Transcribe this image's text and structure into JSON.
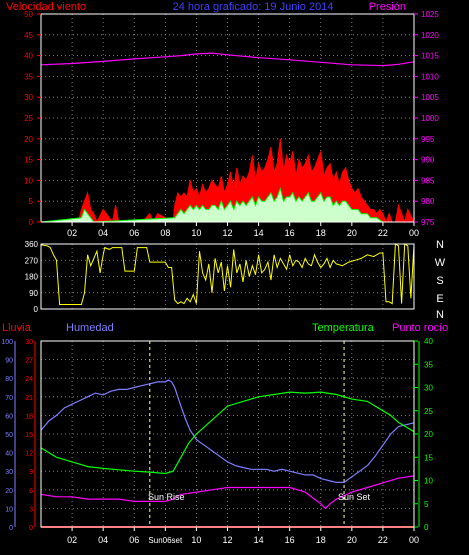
{
  "header": {
    "title": "24 hora graficado: 19 Junio 2014",
    "left_label": "Velocidad viento",
    "right_label": "Presión"
  },
  "colors": {
    "background": "#000000",
    "grid": "#9a9a9a",
    "red": "#ff0000",
    "blue": "#3f3fff",
    "magenta": "#ff00ff",
    "green": "#00ff00",
    "yellow": "#ffff00",
    "light_blue": "#7f7fff",
    "white": "#ffffff",
    "dim_white": "#c8ffc8",
    "fill_gust": "#ff0000",
    "fill_avg": "#ccffcc"
  },
  "direction_labels": [
    "N",
    "W",
    "S",
    "E",
    "N"
  ],
  "bottom_labels": {
    "lluvia": "Lluvia",
    "humedad": "Humedad",
    "temperatura": "Temperatura",
    "punto_rocio": "Punto rocío"
  },
  "annotations": {
    "sun_rise": "Sun Rise",
    "sun_set": "Sun Set",
    "sun_time_label": "Sun06set"
  },
  "x_ticks": [
    "02",
    "04",
    "06",
    "08",
    "10",
    "12",
    "14",
    "16",
    "18",
    "20",
    "22",
    "00"
  ],
  "chart_data": [
    {
      "type": "area",
      "panel": "wind",
      "title": "24 hora graficado: 19 Junio 2014",
      "x_range_hours": [
        0,
        24
      ],
      "y_left_label": "Velocidad viento",
      "y_left_ticks": [
        0,
        5,
        10,
        15,
        20,
        25,
        30,
        35,
        40,
        45,
        50
      ],
      "y_left_range": [
        0,
        50
      ],
      "y_right_label": "Presión",
      "y_right_ticks": [
        975,
        980,
        985,
        990,
        995,
        1000,
        1005,
        1010,
        1015,
        1020,
        1025
      ],
      "y_right_range": [
        975,
        1025
      ],
      "series": [
        {
          "name": "Presión",
          "axis": "right",
          "color": "#ff00ff",
          "x": [
            0,
            2,
            4,
            6,
            8,
            9,
            10,
            11,
            12,
            14,
            16,
            18,
            20,
            22,
            23,
            24
          ],
          "y": [
            1012.8,
            1013.1,
            1013.6,
            1014.2,
            1014.7,
            1015.0,
            1015.4,
            1015.6,
            1015.2,
            1014.5,
            1014.0,
            1013.4,
            1012.8,
            1012.6,
            1012.9,
            1013.5
          ]
        },
        {
          "name": "gust",
          "x": [
            0,
            2.4,
            2.6,
            2.8,
            3.0,
            3.2,
            3.4,
            3.6,
            4.0,
            4.6,
            4.8,
            5.0,
            6.5,
            7.0,
            7.2,
            7.5,
            8.5,
            8.6,
            8.8,
            9.0,
            9.2,
            9.4,
            9.6,
            9.8,
            10.0,
            10.2,
            10.4,
            10.6,
            10.8,
            11.0,
            11.2,
            11.4,
            11.6,
            11.8,
            12.0,
            12.2,
            12.4,
            12.6,
            12.8,
            13.0,
            13.2,
            13.4,
            13.6,
            13.8,
            14.0,
            14.2,
            14.4,
            14.6,
            14.8,
            15.0,
            15.2,
            15.4,
            15.6,
            15.8,
            16.0,
            16.2,
            16.4,
            16.6,
            16.8,
            17.0,
            17.2,
            17.4,
            17.6,
            17.8,
            18.0,
            18.2,
            18.4,
            18.6,
            18.8,
            19.0,
            19.2,
            19.4,
            19.6,
            19.8,
            20.0,
            20.2,
            20.4,
            20.6,
            20.8,
            21.0,
            21.2,
            21.4,
            21.6,
            21.8,
            22.0,
            22.2,
            22.4,
            22.6,
            22.8,
            23.0,
            23.2,
            23.4,
            23.6,
            24
          ],
          "y": [
            0,
            0,
            3,
            5,
            7,
            3,
            2,
            0,
            3,
            0,
            4,
            0,
            0,
            2,
            0,
            2,
            0,
            4,
            7,
            6,
            7,
            6,
            10,
            7,
            8,
            6,
            9,
            7,
            8,
            10,
            9,
            8,
            11,
            7,
            9,
            12,
            8,
            13,
            9,
            11,
            10,
            12,
            16,
            10,
            14,
            12,
            13,
            15,
            18,
            12,
            14,
            20,
            12,
            16,
            14,
            17,
            11,
            15,
            13,
            14,
            16,
            12,
            13,
            15,
            17,
            11,
            13,
            14,
            10,
            12,
            9,
            12,
            13,
            10,
            8,
            7,
            8,
            6,
            5,
            4,
            3,
            3,
            2,
            3,
            2,
            0,
            2,
            0,
            0,
            4,
            2,
            0,
            3,
            0
          ]
        },
        {
          "name": "avg",
          "x": [
            0,
            2.6,
            2.8,
            3.0,
            3.2,
            3.4,
            8.6,
            8.8,
            9.0,
            9.2,
            9.4,
            9.6,
            9.8,
            10.0,
            10.2,
            10.4,
            10.6,
            10.8,
            11.0,
            11.2,
            11.4,
            11.6,
            11.8,
            12.0,
            12.2,
            12.4,
            12.6,
            12.8,
            13.0,
            13.2,
            13.4,
            13.6,
            13.8,
            14.0,
            14.2,
            14.4,
            14.6,
            14.8,
            15.0,
            15.2,
            15.4,
            15.6,
            15.8,
            16.0,
            16.2,
            16.4,
            16.6,
            16.8,
            17.0,
            17.2,
            17.4,
            17.6,
            17.8,
            18.0,
            18.2,
            18.4,
            18.6,
            18.8,
            19.0,
            19.2,
            19.4,
            19.6,
            19.8,
            20.0,
            20.2,
            20.4,
            20.6,
            20.8,
            21.0,
            21.2,
            21.4,
            21.6,
            22.0,
            24
          ],
          "y": [
            0,
            1,
            3,
            2,
            1,
            0,
            1,
            2,
            3,
            2,
            3,
            4,
            3,
            4,
            3,
            4,
            3,
            3,
            4,
            4,
            3,
            5,
            3,
            4,
            5,
            3,
            5,
            4,
            5,
            4,
            5,
            6,
            4,
            6,
            5,
            5,
            6,
            7,
            5,
            6,
            8,
            5,
            6,
            6,
            7,
            5,
            6,
            5,
            6,
            7,
            5,
            5,
            6,
            7,
            5,
            6,
            6,
            4,
            5,
            4,
            5,
            5,
            4,
            3,
            3,
            3,
            2,
            2,
            2,
            1,
            1,
            1,
            0,
            0
          ]
        }
      ]
    },
    {
      "type": "line",
      "panel": "direction",
      "x_range_hours": [
        0,
        24
      ],
      "y_ticks": [
        0,
        90,
        180,
        270,
        360
      ],
      "y_range": [
        0,
        360
      ],
      "series": [
        {
          "name": "direction",
          "color": "#ffff00",
          "x": [
            0,
            0.4,
            0.6,
            0.8,
            1.0,
            1.2,
            2.6,
            2.8,
            3.0,
            3.2,
            3.4,
            3.6,
            3.8,
            4.0,
            4.1,
            4.4,
            4.6,
            5.2,
            5.4,
            6.0,
            6.2,
            6.8,
            7.0,
            8.0,
            8.2,
            8.4,
            8.6,
            8.8,
            9.0,
            9.2,
            9.4,
            9.6,
            9.8,
            10.0,
            10.2,
            10.4,
            10.6,
            10.8,
            11.0,
            11.2,
            11.4,
            11.6,
            11.8,
            12.0,
            12.2,
            12.4,
            12.6,
            12.8,
            13.0,
            13.2,
            13.4,
            13.6,
            13.8,
            14.0,
            14.2,
            14.4,
            14.6,
            14.8,
            15.0,
            15.2,
            15.4,
            15.6,
            15.8,
            16.0,
            16.2,
            16.4,
            16.6,
            16.8,
            17.0,
            17.2,
            17.4,
            17.6,
            17.8,
            18.0,
            18.2,
            18.4,
            18.6,
            18.8,
            19.0,
            19.4,
            19.8,
            20.2,
            20.6,
            21.0,
            21.4,
            21.8,
            22.0,
            22.2,
            22.4,
            22.6,
            22.8,
            23.0,
            23.2,
            23.4,
            23.6,
            23.8,
            24
          ],
          "y": [
            355,
            350,
            340,
            300,
            270,
            25,
            25,
            90,
            300,
            240,
            280,
            320,
            200,
            300,
            340,
            330,
            340,
            340,
            210,
            210,
            340,
            340,
            260,
            260,
            230,
            230,
            50,
            30,
            40,
            30,
            60,
            40,
            80,
            30,
            320,
            200,
            160,
            250,
            90,
            280,
            200,
            260,
            100,
            240,
            120,
            330,
            200,
            250,
            150,
            270,
            180,
            240,
            190,
            300,
            200,
            220,
            260,
            160,
            300,
            230,
            280,
            250,
            220,
            300,
            240,
            270,
            260,
            230,
            280,
            250,
            240,
            300,
            260,
            230,
            250,
            280,
            230,
            270,
            250,
            240,
            260,
            270,
            280,
            300,
            290,
            310,
            310,
            40,
            40,
            30,
            360,
            350,
            30,
            360,
            350,
            60,
            355
          ]
        }
      ]
    },
    {
      "type": "line",
      "panel": "climate",
      "x_range_hours": [
        0,
        24
      ],
      "y_left_outer_label": "Lluvia",
      "y_left_outer_ticks": [
        0,
        10,
        20,
        30,
        40,
        50,
        60,
        70,
        80,
        90,
        100
      ],
      "y_left_outer_range": [
        0,
        100
      ],
      "y_left_inner_ticks": [
        0,
        3,
        6,
        9,
        12,
        15,
        18,
        21,
        24,
        27,
        30
      ],
      "y_left_inner_range": [
        0,
        30
      ],
      "y_right_ticks": [
        0,
        5,
        10,
        15,
        20,
        25,
        30,
        35,
        40
      ],
      "y_right_range": [
        0,
        40
      ],
      "series": [
        {
          "name": "Humedad",
          "axis": "left_outer",
          "color": "#7f7fff",
          "x": [
            0,
            0.5,
            1,
            1.5,
            2,
            2.5,
            3,
            3.5,
            4,
            4.5,
            5,
            5.5,
            6,
            6.5,
            7,
            7.5,
            8,
            8.2,
            8.4,
            8.6,
            8.8,
            9,
            9.3,
            9.6,
            10,
            10.5,
            11,
            11.5,
            12,
            12.5,
            13,
            13.5,
            14,
            14.5,
            15,
            15.5,
            16,
            16.5,
            17,
            17.5,
            18,
            18.5,
            19,
            19.5,
            20,
            20.5,
            21,
            21.5,
            22,
            22.5,
            23,
            23.5,
            24
          ],
          "y": [
            52,
            57,
            60,
            64,
            66,
            68,
            70,
            72,
            71,
            73,
            74,
            74,
            75,
            76,
            77,
            78,
            78,
            79,
            78,
            75,
            70,
            65,
            58,
            52,
            47,
            44,
            41,
            38,
            35,
            33,
            32,
            31,
            31,
            31,
            30,
            31,
            30,
            29,
            28,
            28,
            26,
            25,
            24,
            24,
            27,
            30,
            33,
            38,
            44,
            50,
            54,
            55,
            56
          ]
        },
        {
          "name": "Temperatura",
          "axis": "right",
          "color": "#00ff00",
          "x": [
            0,
            0.5,
            1,
            1.5,
            2,
            2.5,
            3,
            3.5,
            4,
            5,
            6,
            7,
            8,
            8.5,
            9,
            9.5,
            10,
            11,
            12,
            13,
            14,
            15,
            16,
            17,
            18,
            19,
            20,
            21,
            22,
            22.5,
            23,
            23.5,
            24
          ],
          "y": [
            17,
            16,
            15,
            14.5,
            14,
            13.5,
            13,
            12.8,
            12.6,
            12.3,
            12,
            11.8,
            11.5,
            12,
            15,
            18,
            20,
            23,
            26,
            27,
            28,
            28.5,
            29,
            28.8,
            29,
            28.5,
            27.5,
            27,
            25,
            24,
            22.5,
            21.5,
            20.5
          ]
        },
        {
          "name": "Punto rocío",
          "axis": "right",
          "color": "#ff00ff",
          "x": [
            0,
            1,
            2,
            3,
            4,
            5,
            6,
            7,
            8,
            8.5,
            9,
            10,
            11,
            12,
            13,
            14,
            15,
            16,
            17,
            17.6,
            18,
            18.3,
            18.6,
            19,
            20,
            21,
            22,
            23,
            24
          ],
          "y": [
            7,
            6.5,
            6.5,
            6,
            6,
            6,
            5.5,
            5.5,
            5.5,
            6,
            7,
            7.5,
            8,
            8.5,
            8.5,
            8.5,
            8.5,
            8.5,
            7.5,
            6,
            5,
            4,
            5,
            6,
            7.5,
            8.5,
            9.5,
            10.5,
            11
          ]
        },
        {
          "name": "Lluvia",
          "axis": "left_inner",
          "color": "#ff0000",
          "x": [
            0,
            24
          ],
          "y": [
            0,
            0
          ]
        }
      ],
      "markers": {
        "sun_rise_hour": 7.0,
        "sun_set_hour": 19.5
      }
    }
  ]
}
